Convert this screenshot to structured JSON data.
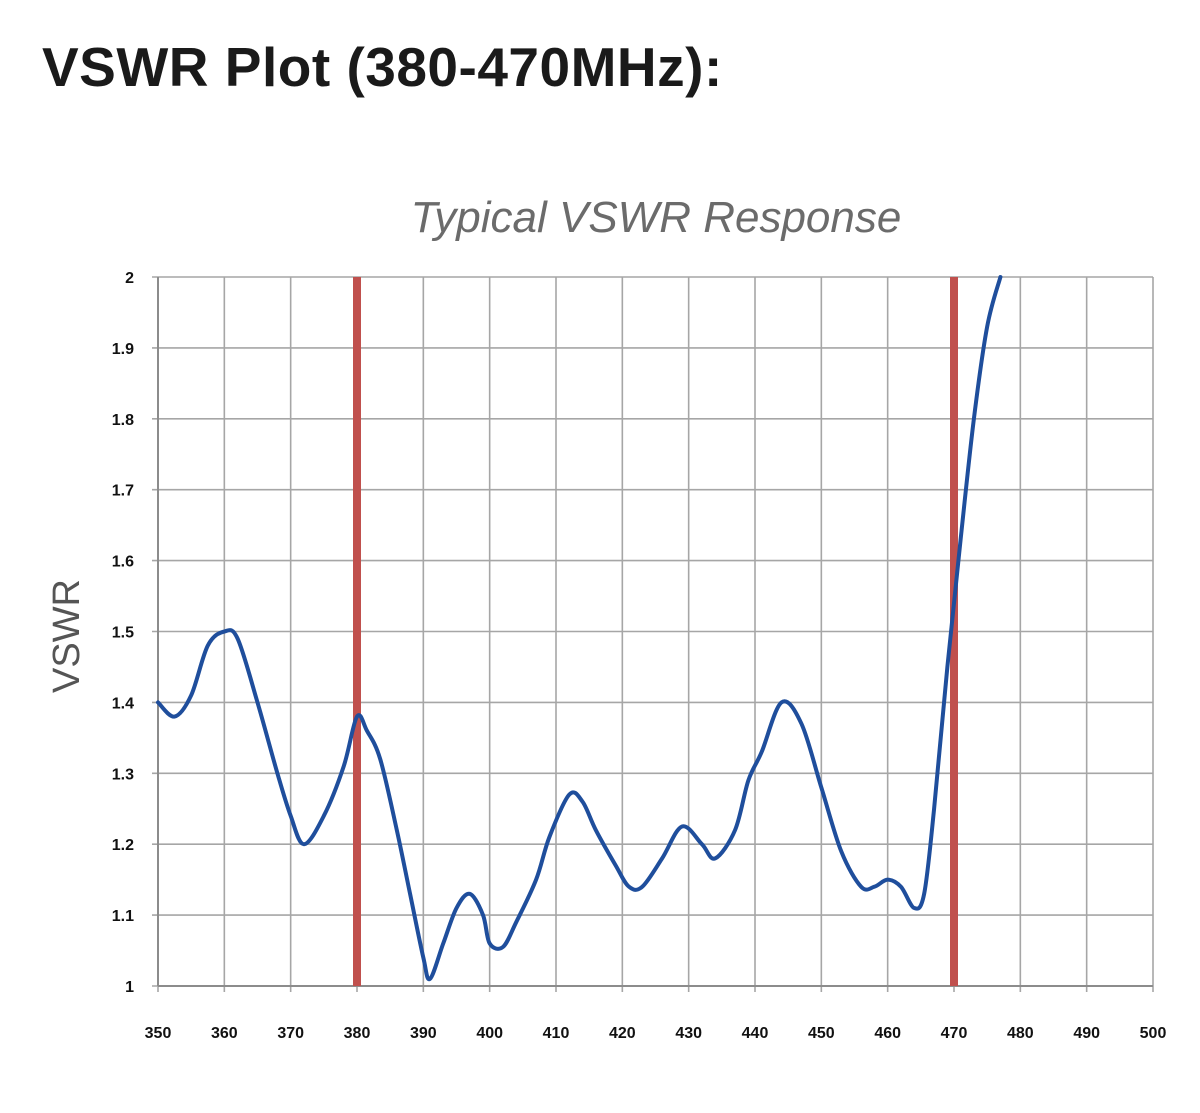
{
  "page": {
    "heading": "VSWR Plot (380-470MHz):"
  },
  "chart_data": {
    "type": "line",
    "title": "Typical VSWR Response",
    "xlabel": "",
    "ylabel": "VSWR",
    "xlim": [
      350,
      500
    ],
    "ylim": [
      1,
      2
    ],
    "x_ticks": [
      "350",
      "360",
      "370",
      "380",
      "390",
      "400",
      "410",
      "420",
      "430",
      "440",
      "450",
      "460",
      "470",
      "480",
      "490",
      "500"
    ],
    "y_ticks": [
      "1",
      "1.1",
      "1.2",
      "1.3",
      "1.4",
      "1.5",
      "1.6",
      "1.7",
      "1.8",
      "1.9",
      "2"
    ],
    "grid": true,
    "series": [
      {
        "color": "#1f4e9c",
        "x": [
          350,
          352.5,
          355,
          357.5,
          360,
          362,
          365,
          368,
          370,
          372,
          375,
          378,
          380,
          381.5,
          383.5,
          386,
          388,
          390,
          391,
          393,
          395,
          397,
          399,
          400,
          402,
          404,
          407,
          409,
          412,
          414,
          416,
          419,
          421,
          423,
          426,
          429,
          432,
          434,
          437,
          439,
          441,
          444,
          447,
          450,
          453,
          456,
          458,
          460,
          462,
          464,
          465.5,
          467,
          469,
          471,
          473,
          475,
          477
        ],
        "y": [
          1.4,
          1.38,
          1.41,
          1.48,
          1.5,
          1.49,
          1.4,
          1.3,
          1.24,
          1.2,
          1.24,
          1.31,
          1.38,
          1.36,
          1.32,
          1.22,
          1.13,
          1.04,
          1.01,
          1.06,
          1.11,
          1.13,
          1.1,
          1.06,
          1.055,
          1.09,
          1.15,
          1.21,
          1.27,
          1.26,
          1.22,
          1.17,
          1.14,
          1.14,
          1.18,
          1.225,
          1.2,
          1.18,
          1.22,
          1.29,
          1.33,
          1.4,
          1.37,
          1.28,
          1.19,
          1.14,
          1.14,
          1.15,
          1.14,
          1.11,
          1.13,
          1.25,
          1.45,
          1.63,
          1.8,
          1.93,
          2.0
        ]
      }
    ],
    "markers": [
      {
        "x": 380,
        "color": "#c0504d"
      },
      {
        "x": 470,
        "color": "#c0504d"
      }
    ]
  }
}
